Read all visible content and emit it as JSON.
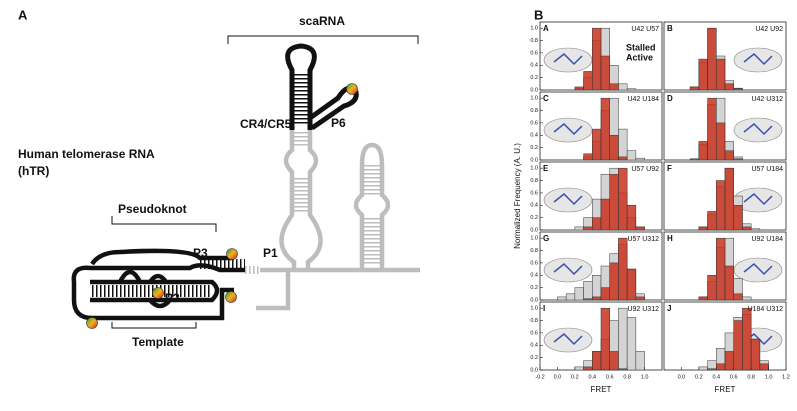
{
  "figure": {
    "panel_a": {
      "label": "A",
      "scarna": "scaRNA",
      "cr4cr5": "CR4/CR5",
      "p6": "P6",
      "htr_1": "Human telomerase RNA",
      "htr_2": "(hTR)",
      "pseudoknot": "Pseudoknot",
      "p3": "P3",
      "p1": "P1",
      "p2": "P2",
      "template": "Template"
    },
    "panel_b": {
      "label": "B",
      "y_label": "Normalized Frequency (A. U.)"
    }
  },
  "chart_data": [
    {
      "type": "histogram",
      "label": "A",
      "title": "U42 U57",
      "bins": [
        0,
        0.1,
        0.2,
        0.3,
        0.4,
        0.5,
        0.6,
        0.7,
        0.8,
        0.9,
        1.0,
        1.1
      ],
      "series": [
        {
          "name": "Stalled",
          "color": "#c8321e",
          "values": [
            0,
            0,
            0.05,
            0.3,
            1.0,
            0.55,
            0.1,
            0,
            0,
            0,
            0
          ]
        },
        {
          "name": "Active",
          "color": "#d4d4d4",
          "values": [
            0,
            0,
            0.02,
            0.2,
            0.8,
            1.0,
            0.4,
            0.1,
            0.02,
            0,
            0
          ]
        }
      ],
      "xlim": [
        -0.2,
        1.2
      ],
      "ylim": [
        0,
        1.1
      ],
      "yticks": [
        {
          "value": 0,
          "label": "0.0"
        },
        0.2,
        0.4,
        0.6,
        0.8,
        {
          "value": 1,
          "label": "1.0"
        }
      ]
    },
    {
      "type": "histogram",
      "label": "B",
      "title": "U42 U92",
      "bins": [
        0,
        0.1,
        0.2,
        0.3,
        0.4,
        0.5,
        0.6,
        0.7,
        0.8,
        0.9,
        1.0,
        1.1
      ],
      "series": [
        {
          "color": "#c8321e",
          "values": [
            0,
            0.05,
            0.5,
            1.0,
            0.5,
            0.1,
            0.02,
            0,
            0,
            0,
            0
          ]
        },
        {
          "color": "#d4d4d4",
          "values": [
            0,
            0.05,
            0.45,
            1.0,
            0.55,
            0.15,
            0.03,
            0,
            0,
            0,
            0
          ]
        }
      ],
      "xlim": [
        -0.2,
        1.2
      ],
      "ylim": [
        0,
        1.1
      ]
    },
    {
      "type": "histogram",
      "label": "C",
      "title": "U42 U184",
      "bins": [
        0,
        0.1,
        0.2,
        0.3,
        0.4,
        0.5,
        0.6,
        0.7,
        0.8,
        0.9,
        1.0,
        1.1
      ],
      "series": [
        {
          "color": "#c8321e",
          "values": [
            0,
            0,
            0,
            0.1,
            0.5,
            1.0,
            0.4,
            0.05,
            0,
            0,
            0
          ]
        },
        {
          "color": "#d4d4d4",
          "values": [
            0,
            0,
            0,
            0.05,
            0.3,
            0.8,
            1.0,
            0.5,
            0.15,
            0.03,
            0
          ]
        }
      ],
      "xlim": [
        -0.2,
        1.2
      ],
      "ylim": [
        0,
        1.1
      ],
      "yticks": [
        {
          "value": 0,
          "label": "0.0"
        },
        0.2,
        0.4,
        0.6,
        0.8,
        {
          "value": 1,
          "label": "1.0"
        }
      ]
    },
    {
      "type": "histogram",
      "label": "D",
      "title": "U42 U312",
      "bins": [
        0,
        0.1,
        0.2,
        0.3,
        0.4,
        0.5,
        0.6,
        0.7,
        0.8,
        0.9,
        1.0,
        1.1
      ],
      "series": [
        {
          "color": "#c8321e",
          "values": [
            0,
            0.02,
            0.3,
            1.0,
            0.6,
            0.15,
            0.02,
            0,
            0,
            0,
            0
          ]
        },
        {
          "color": "#d4d4d4",
          "values": [
            0,
            0.02,
            0.25,
            0.9,
            1.0,
            0.3,
            0.05,
            0,
            0,
            0,
            0
          ]
        }
      ],
      "xlim": [
        -0.2,
        1.2
      ],
      "ylim": [
        0,
        1.1
      ]
    },
    {
      "type": "histogram",
      "label": "E",
      "title": "U57 U92",
      "bins": [
        0,
        0.1,
        0.2,
        0.3,
        0.4,
        0.5,
        0.6,
        0.7,
        0.8,
        0.9,
        1.0,
        1.1
      ],
      "series": [
        {
          "color": "#c8321e",
          "values": [
            0,
            0,
            0,
            0.05,
            0.2,
            0.5,
            0.9,
            1.0,
            0.4,
            0.05,
            0
          ]
        },
        {
          "color": "#d4d4d4",
          "values": [
            0,
            0,
            0.05,
            0.2,
            0.5,
            0.9,
            1.0,
            0.6,
            0.2,
            0.05,
            0
          ]
        }
      ],
      "xlim": [
        -0.2,
        1.2
      ],
      "ylim": [
        0,
        1.1
      ],
      "yticks": [
        {
          "value": 0,
          "label": "0.0"
        },
        0.2,
        0.4,
        0.6,
        0.8,
        {
          "value": 1,
          "label": "1.0"
        }
      ]
    },
    {
      "type": "histogram",
      "label": "F",
      "title": "U57 U184",
      "bins": [
        0,
        0.1,
        0.2,
        0.3,
        0.4,
        0.5,
        0.6,
        0.7,
        0.8,
        0.9,
        1.0,
        1.1
      ],
      "series": [
        {
          "color": "#c8321e",
          "values": [
            0,
            0,
            0.05,
            0.3,
            0.8,
            1.0,
            0.4,
            0.05,
            0,
            0,
            0
          ]
        },
        {
          "color": "#d4d4d4",
          "values": [
            0,
            0,
            0.05,
            0.25,
            0.7,
            1.0,
            0.55,
            0.1,
            0.02,
            0,
            0
          ]
        }
      ],
      "xlim": [
        -0.2,
        1.2
      ],
      "ylim": [
        0,
        1.1
      ]
    },
    {
      "type": "histogram",
      "label": "G",
      "title": "U57 U312",
      "bins": [
        0,
        0.1,
        0.2,
        0.3,
        0.4,
        0.5,
        0.6,
        0.7,
        0.8,
        0.9,
        1.0,
        1.1
      ],
      "series": [
        {
          "color": "#c8321e",
          "values": [
            0,
            0,
            0,
            0.02,
            0.05,
            0.2,
            0.6,
            1.0,
            0.5,
            0.05,
            0
          ]
        },
        {
          "color": "#d4d4d4",
          "values": [
            0.05,
            0.1,
            0.2,
            0.3,
            0.4,
            0.55,
            0.75,
            0.9,
            0.5,
            0.1,
            0
          ]
        }
      ],
      "xlim": [
        -0.2,
        1.2
      ],
      "ylim": [
        0,
        1.1
      ],
      "yticks": [
        {
          "value": 0,
          "label": "0.0"
        },
        0.2,
        0.4,
        0.6,
        0.8,
        {
          "value": 1,
          "label": "1.0"
        }
      ]
    },
    {
      "type": "histogram",
      "label": "H",
      "title": "U92 U184",
      "bins": [
        0,
        0.1,
        0.2,
        0.3,
        0.4,
        0.5,
        0.6,
        0.7,
        0.8,
        0.9,
        1.0,
        1.1
      ],
      "series": [
        {
          "color": "#c8321e",
          "values": [
            0,
            0,
            0.05,
            0.4,
            1.0,
            0.55,
            0.1,
            0,
            0,
            0,
            0
          ]
        },
        {
          "color": "#d4d4d4",
          "values": [
            0,
            0,
            0.05,
            0.3,
            0.85,
            1.0,
            0.35,
            0.05,
            0,
            0,
            0
          ]
        }
      ],
      "xlim": [
        -0.2,
        1.2
      ],
      "ylim": [
        0,
        1.1
      ]
    },
    {
      "type": "histogram",
      "label": "I",
      "title": "U92 U312",
      "bins": [
        0,
        0.1,
        0.2,
        0.3,
        0.4,
        0.5,
        0.6,
        0.7,
        0.8,
        0.9,
        1.0,
        1.1
      ],
      "series": [
        {
          "color": "#c8321e",
          "values": [
            0,
            0,
            0,
            0.05,
            0.3,
            1.0,
            0.3,
            0.02,
            0,
            0,
            0
          ]
        },
        {
          "color": "#d4d4d4",
          "values": [
            0,
            0,
            0.05,
            0.15,
            0.3,
            0.5,
            0.8,
            1.0,
            0.85,
            0.3,
            0
          ]
        }
      ],
      "xlim": [
        -0.2,
        1.2
      ],
      "ylim": [
        0,
        1.1
      ],
      "yticks": [
        {
          "value": 0,
          "label": "0.0"
        },
        0.2,
        0.4,
        0.6,
        0.8,
        {
          "value": 1,
          "label": "1.0"
        }
      ],
      "xticks": [
        -0.2,
        {
          "value": 0,
          "label": "0.0"
        },
        0.2,
        0.4,
        0.6,
        0.8,
        {
          "value": 1,
          "label": "1.0"
        }
      ],
      "x_label": "FRET"
    },
    {
      "type": "histogram",
      "label": "J",
      "title": "U184 U312",
      "bins": [
        0,
        0.1,
        0.2,
        0.3,
        0.4,
        0.5,
        0.6,
        0.7,
        0.8,
        0.9,
        1.0,
        1.1
      ],
      "series": [
        {
          "color": "#c8321e",
          "values": [
            0,
            0,
            0,
            0.02,
            0.1,
            0.3,
            0.8,
            1.0,
            0.5,
            0.1,
            0
          ]
        },
        {
          "color": "#d4d4d4",
          "values": [
            0,
            0,
            0.05,
            0.15,
            0.35,
            0.6,
            0.85,
            0.9,
            0.5,
            0.15,
            0
          ]
        }
      ],
      "xlim": [
        -0.2,
        1.2
      ],
      "ylim": [
        0,
        1.1
      ],
      "xticks": [
        {
          "value": 0,
          "label": "0.0"
        },
        0.2,
        0.4,
        0.6,
        0.8,
        {
          "value": 1,
          "label": "1.0"
        },
        1.2
      ],
      "x_label": "FRET"
    }
  ]
}
